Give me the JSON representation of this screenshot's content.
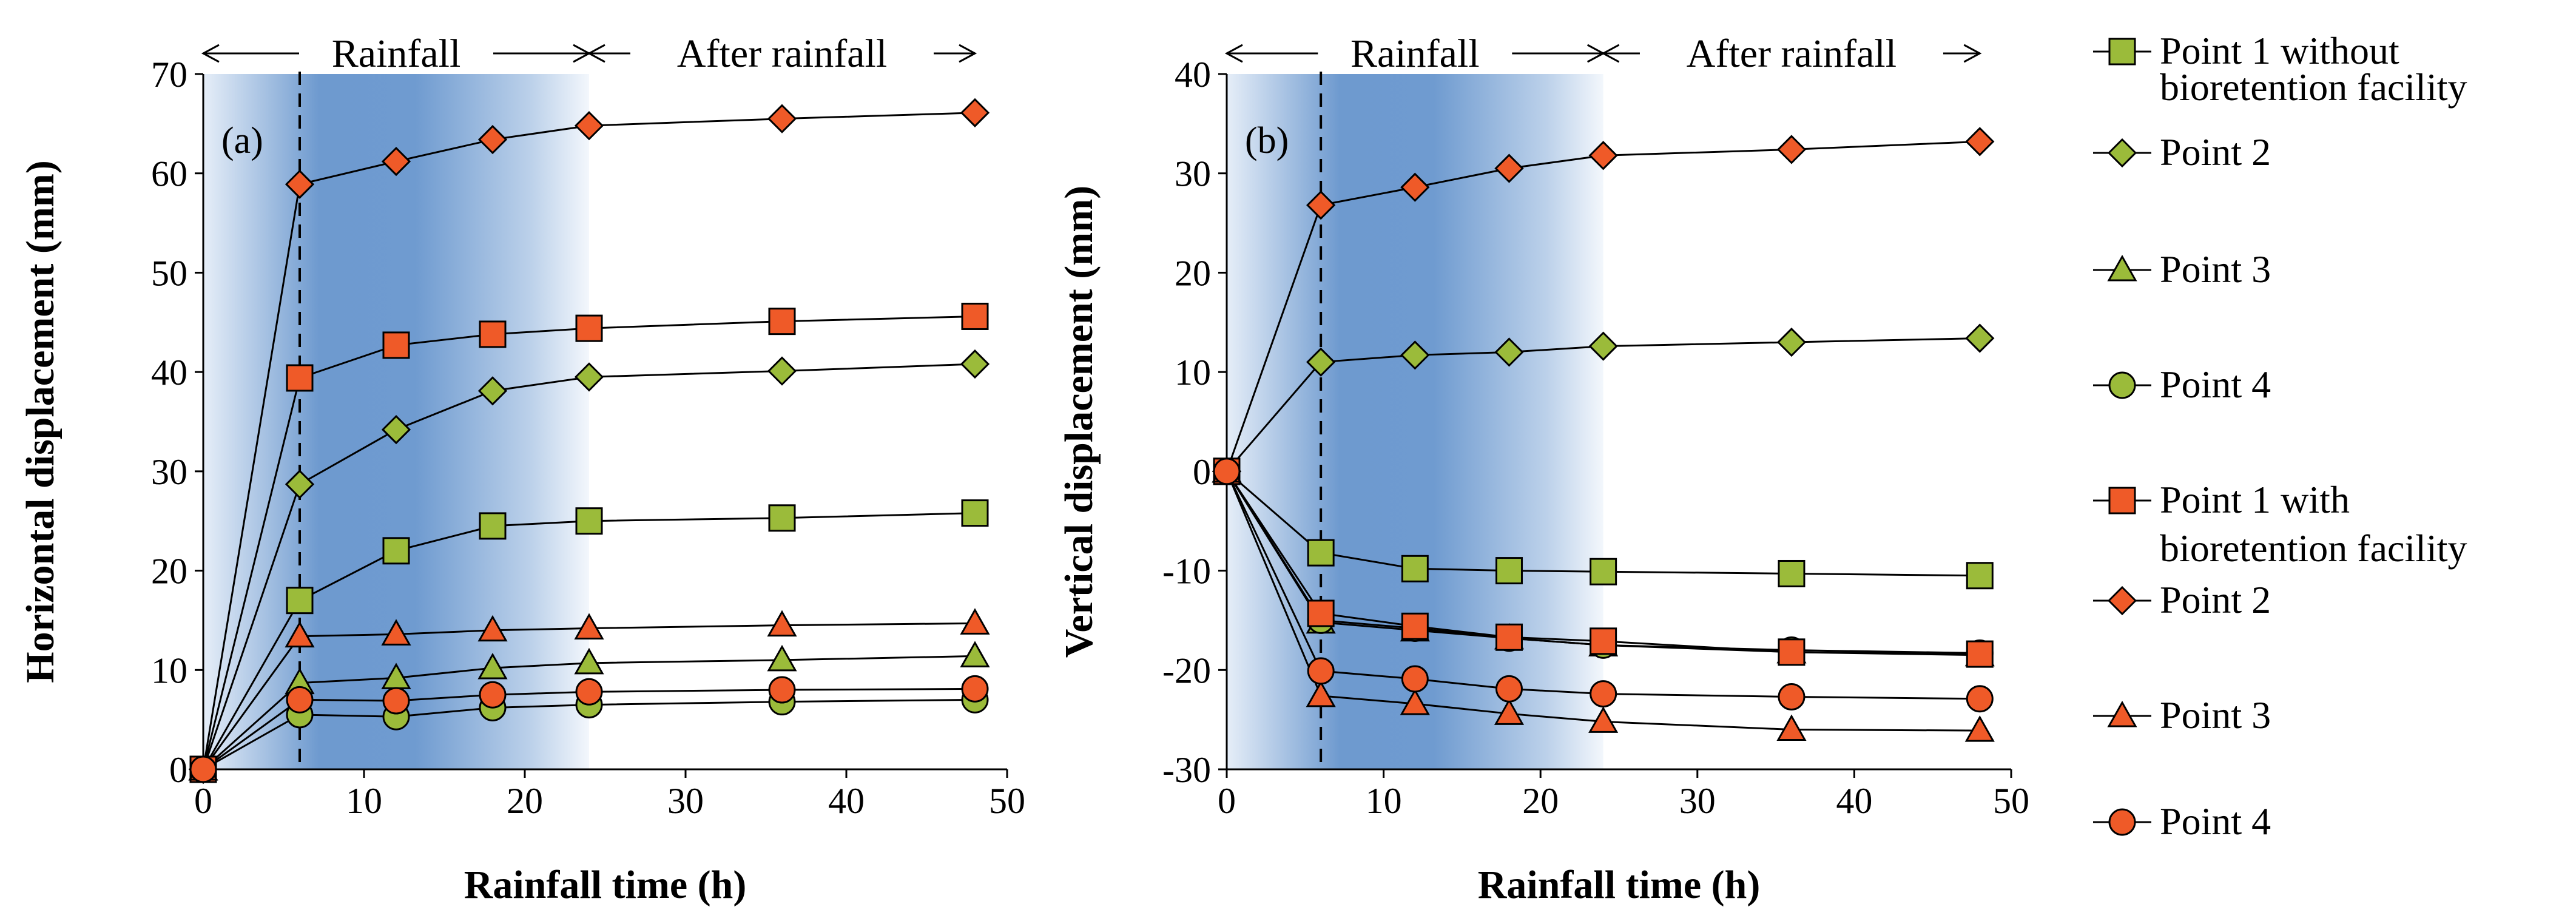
{
  "chart_data": [
    {
      "type": "line",
      "panel_label": "(a)",
      "xlabel": "Rainfall time (h)",
      "ylabel": "Horizontal displacement (mm)",
      "xlim": [
        0,
        50
      ],
      "ylim": [
        0,
        70
      ],
      "xticks": [
        0,
        10,
        20,
        30,
        40,
        50
      ],
      "yticks": [
        0,
        10,
        20,
        30,
        40,
        50,
        60,
        70
      ],
      "x": [
        0,
        6,
        12,
        18,
        24,
        36,
        48
      ],
      "rain_region": [
        0,
        24
      ],
      "dashed_marker_x": 6,
      "annotations": [
        "Rainfall",
        "After rainfall"
      ],
      "series": [
        {
          "name": "Point 1 without bioretention facility",
          "marker": "square",
          "color": "#9bbb3a",
          "values": [
            0,
            17,
            22,
            24.5,
            25,
            25.3,
            25.8
          ]
        },
        {
          "name": "Point 2",
          "marker": "diamond",
          "color": "#9bbb3a",
          "values": [
            0,
            28.7,
            34.2,
            38.1,
            39.5,
            40.1,
            40.8
          ]
        },
        {
          "name": "Point 3",
          "marker": "triangle",
          "color": "#9bbb3a",
          "values": [
            0,
            8.7,
            9.2,
            10.2,
            10.7,
            11,
            11.4
          ]
        },
        {
          "name": "Point 4",
          "marker": "circle",
          "color": "#9bbb3a",
          "values": [
            0,
            5.5,
            5.3,
            6.2,
            6.5,
            6.8,
            7
          ]
        },
        {
          "name": "Point 1 with bioretention facility",
          "marker": "square",
          "color": "#ef5a28",
          "values": [
            0,
            39.4,
            42.7,
            43.8,
            44.4,
            45.1,
            45.6
          ]
        },
        {
          "name": "Point 2",
          "marker": "diamond",
          "color": "#ef5a28",
          "values": [
            0,
            58.9,
            61.2,
            63.4,
            64.8,
            65.5,
            66.1
          ]
        },
        {
          "name": "Point 3",
          "marker": "triangle",
          "color": "#ef5a28",
          "values": [
            0,
            13.4,
            13.6,
            14,
            14.2,
            14.5,
            14.7
          ]
        },
        {
          "name": "Point 4",
          "marker": "circle",
          "color": "#ef5a28",
          "values": [
            0,
            7,
            6.9,
            7.5,
            7.8,
            8,
            8.1
          ]
        }
      ]
    },
    {
      "type": "line",
      "panel_label": "(b)",
      "xlabel": "Rainfall time (h)",
      "ylabel": "Vertical displacement (mm)",
      "xlim": [
        0,
        50
      ],
      "ylim": [
        -30,
        40
      ],
      "xticks": [
        0,
        10,
        20,
        30,
        40,
        50
      ],
      "yticks": [
        -30,
        -20,
        -10,
        0,
        10,
        20,
        30,
        40
      ],
      "x": [
        0,
        6,
        12,
        18,
        24,
        36,
        48
      ],
      "rain_region": [
        0,
        24
      ],
      "dashed_marker_x": 6,
      "annotations": [
        "Rainfall",
        "After rainfall"
      ],
      "series": [
        {
          "name": "Point 1 without bioretention facility",
          "marker": "square",
          "color": "#9bbb3a",
          "values": [
            0,
            -8.2,
            -9.8,
            -10,
            -10.1,
            -10.3,
            -10.5
          ]
        },
        {
          "name": "Point 2",
          "marker": "diamond",
          "color": "#9bbb3a",
          "values": [
            0,
            11,
            11.7,
            12,
            12.6,
            13,
            13.4
          ]
        },
        {
          "name": "Point 3",
          "marker": "triangle",
          "color": "#9bbb3a",
          "values": [
            0,
            -15.2,
            -16,
            -16.8,
            -17.5,
            -18.2,
            -18.5
          ]
        },
        {
          "name": "Point 4",
          "marker": "circle",
          "color": "#9bbb3a",
          "values": [
            0,
            -15,
            -15.8,
            -16.8,
            -17.5,
            -18,
            -18.3
          ]
        },
        {
          "name": "Point 1 with bioretention facility",
          "marker": "square",
          "color": "#ef5a28",
          "values": [
            0,
            -14.3,
            -15.6,
            -16.7,
            -17.1,
            -18.2,
            -18.4
          ]
        },
        {
          "name": "Point 2",
          "marker": "diamond",
          "color": "#ef5a28",
          "values": [
            0,
            26.8,
            28.6,
            30.5,
            31.8,
            32.4,
            33.2
          ]
        },
        {
          "name": "Point 3",
          "marker": "triangle",
          "color": "#ef5a28",
          "values": [
            0,
            -22.6,
            -23.4,
            -24.4,
            -25.2,
            -26,
            -26.1
          ]
        },
        {
          "name": "Point 4",
          "marker": "circle",
          "color": "#ef5a28",
          "values": [
            0,
            -20.1,
            -20.9,
            -21.9,
            -22.4,
            -22.7,
            -22.9
          ]
        }
      ]
    }
  ],
  "legend": {
    "entries": [
      {
        "label_lines": [
          "Point 1 without",
          "bioretention facility"
        ],
        "marker": "square",
        "color": "#9bbb3a"
      },
      {
        "label_lines": [
          "Point 2"
        ],
        "marker": "diamond",
        "color": "#9bbb3a"
      },
      {
        "label_lines": [
          "Point 3"
        ],
        "marker": "triangle",
        "color": "#9bbb3a"
      },
      {
        "label_lines": [
          "Point 4"
        ],
        "marker": "circle",
        "color": "#9bbb3a"
      },
      {
        "label_lines": [
          "Point 1 with",
          "bioretention facility"
        ],
        "marker": "square",
        "color": "#ef5a28"
      },
      {
        "label_lines": [
          "Point 2"
        ],
        "marker": "diamond",
        "color": "#ef5a28"
      },
      {
        "label_lines": [
          "Point 3"
        ],
        "marker": "triangle",
        "color": "#ef5a28"
      },
      {
        "label_lines": [
          "Point 4"
        ],
        "marker": "circle",
        "color": "#ef5a28"
      }
    ]
  }
}
